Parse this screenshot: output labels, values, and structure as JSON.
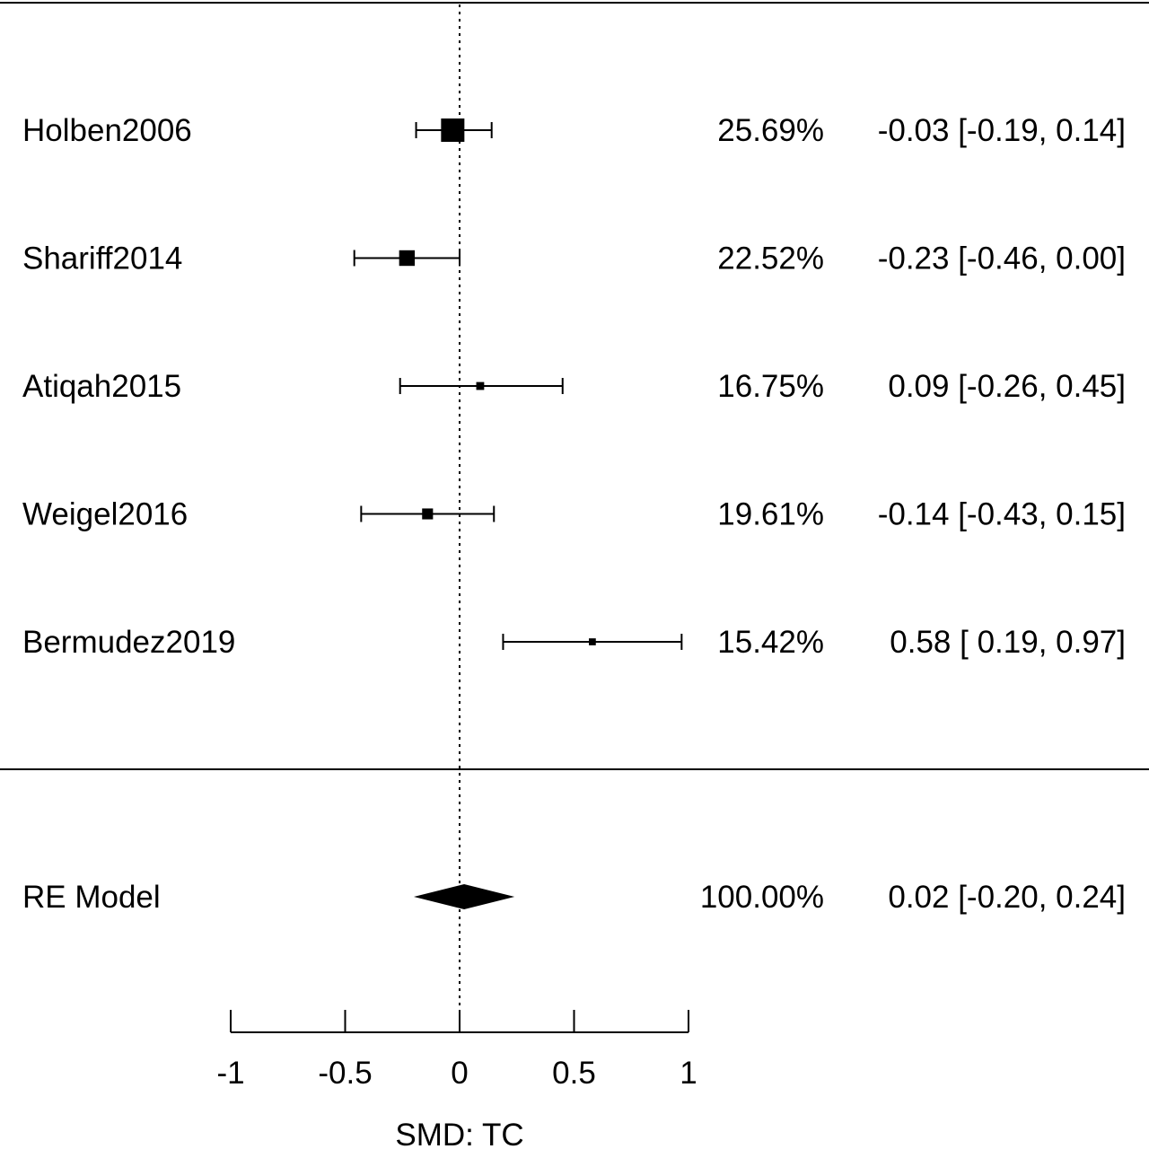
{
  "chart_data": {
    "type": "forest",
    "xlabel": "SMD: TC",
    "xlim": [
      -1,
      1
    ],
    "xticks": [
      {
        "value": -1,
        "label": "-1"
      },
      {
        "value": -0.5,
        "label": "-0.5"
      },
      {
        "value": 0,
        "label": "0"
      },
      {
        "value": 0.5,
        "label": "0.5"
      },
      {
        "value": 1,
        "label": "1"
      }
    ],
    "null_line": 0,
    "studies": [
      {
        "label": "Holben2006",
        "estimate": -0.03,
        "lower": -0.19,
        "upper": 0.14,
        "weight": 25.69,
        "weight_text": "25.69%",
        "ci_text": "-0.03 [-0.19, 0.14]"
      },
      {
        "label": "Shariff2014",
        "estimate": -0.23,
        "lower": -0.46,
        "upper": 0.0,
        "weight": 22.52,
        "weight_text": "22.52%",
        "ci_text": "-0.23 [-0.46, 0.00]"
      },
      {
        "label": "Atiqah2015",
        "estimate": 0.09,
        "lower": -0.26,
        "upper": 0.45,
        "weight": 16.75,
        "weight_text": "16.75%",
        "ci_text": "0.09 [-0.26, 0.45]"
      },
      {
        "label": "Weigel2016",
        "estimate": -0.14,
        "lower": -0.43,
        "upper": 0.15,
        "weight": 19.61,
        "weight_text": "19.61%",
        "ci_text": "-0.14 [-0.43, 0.15]"
      },
      {
        "label": "Bermudez2019",
        "estimate": 0.58,
        "lower": 0.19,
        "upper": 0.97,
        "weight": 15.42,
        "weight_text": "15.42%",
        "ci_text": "0.58 [ 0.19, 0.97]"
      }
    ],
    "summary": {
      "label": "RE Model",
      "estimate": 0.02,
      "lower": -0.2,
      "upper": 0.24,
      "weight_text": "100.00%",
      "ci_text": "0.02 [-0.20, 0.24]"
    }
  }
}
